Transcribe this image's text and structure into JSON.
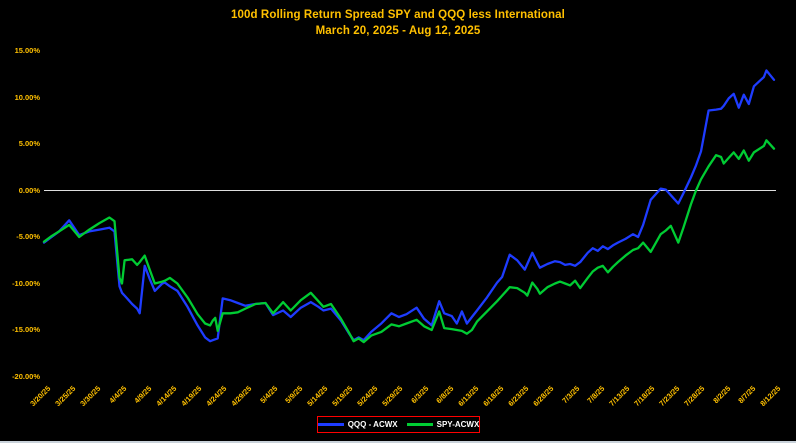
{
  "title": {
    "line1": "100d Rolling Return Spread SPY and QQQ less International",
    "line2": "March 20, 2025 - Aug 12, 2025",
    "color": "#FFC000"
  },
  "legend": {
    "border_color": "#FF0000",
    "items": [
      {
        "label": "QQQ - ACWX",
        "color": "#1E3CFF"
      },
      {
        "label": "SPY-ACWX",
        "color": "#00CC33"
      }
    ]
  },
  "chart_data": {
    "type": "line",
    "title": "100d Rolling Return Spread SPY and QQQ less International",
    "subtitle": "March 20, 2025 - Aug 12, 2025",
    "background": "#000000",
    "grid": false,
    "zero_line": {
      "shown": true,
      "color": "#DEDEDE"
    },
    "legend_position": "bottom-center",
    "x_axis": {
      "start_date": "3/20/25",
      "end_date": "8/12/25",
      "total_days": 145,
      "tick_labels": [
        "3/20/25",
        "3/25/25",
        "3/30/25",
        "4/4/25",
        "4/9/25",
        "4/14/25",
        "4/19/25",
        "4/24/25",
        "4/29/25",
        "5/4/25",
        "5/9/25",
        "5/14/25",
        "5/19/25",
        "5/24/25",
        "5/29/25",
        "6/3/25",
        "6/8/25",
        "6/13/25",
        "6/18/25",
        "6/23/25",
        "6/28/25",
        "7/3/25",
        "7/8/25",
        "7/13/25",
        "7/18/25",
        "7/23/25",
        "7/28/25",
        "8/2/25",
        "8/7/25",
        "8/12/25"
      ]
    },
    "y_axis": {
      "unit": "%",
      "min": -20,
      "max": 15,
      "tick_values": [
        15,
        10,
        5,
        0,
        -5,
        -10,
        -15,
        -20
      ],
      "tick_labels": [
        "15.00%",
        "10.00%",
        "5.00%",
        "0.00%",
        "-5.00%",
        "-10.00%",
        "-15.00%",
        "-20.00%"
      ],
      "label_color": "#FFC000"
    },
    "x_days": [
      0,
      1.5,
      3,
      5,
      7,
      9,
      11,
      13,
      14,
      15,
      15.5,
      16,
      17.5,
      18.5,
      19,
      20,
      21,
      22,
      23.5,
      24,
      25,
      26.5,
      28.5,
      30.5,
      32,
      33,
      33.5,
      34,
      34.5,
      35.5,
      37,
      38.5,
      40,
      42,
      44,
      45.5,
      47.5,
      49,
      51,
      53,
      54.5,
      55.5,
      57,
      59,
      60.5,
      61.5,
      62.5,
      63.5,
      65,
      67,
      69,
      70.5,
      72,
      74,
      75.5,
      77,
      78.5,
      79.5,
      81,
      82,
      83,
      84,
      85,
      86,
      88,
      90,
      91,
      92.5,
      94,
      95.5,
      96,
      97,
      98,
      98.5,
      100,
      101.5,
      102.5,
      103.5,
      104.5,
      105.5,
      106.5,
      108,
      109,
      110,
      111,
      112,
      113,
      114,
      115.5,
      117,
      118,
      119,
      120.5,
      122.5,
      123.5,
      124.5,
      126,
      127,
      128.5,
      129.5,
      130.5,
      132,
      133.5,
      134.5,
      135,
      136,
      137,
      138,
      139,
      140,
      141,
      143,
      143.5,
      145
    ],
    "series": [
      {
        "name": "QQQ - ACWX",
        "color": "#1E3CFF",
        "values": [
          -5.6,
          -5.0,
          -4.4,
          -3.2,
          -4.8,
          -4.4,
          -4.2,
          -4.0,
          -4.4,
          -10.3,
          -11.0,
          -11.3,
          -12.2,
          -12.7,
          -13.2,
          -8.1,
          -9.5,
          -10.8,
          -10.0,
          -9.9,
          -10.3,
          -10.8,
          -12.5,
          -14.5,
          -15.8,
          -16.2,
          -16.1,
          -16.0,
          -15.9,
          -11.6,
          -11.8,
          -12.1,
          -12.4,
          -12.2,
          -12.1,
          -13.4,
          -12.9,
          -13.6,
          -12.6,
          -12.0,
          -12.5,
          -12.9,
          -12.7,
          -14.0,
          -15.3,
          -16.1,
          -15.8,
          -16.1,
          -15.2,
          -14.3,
          -13.2,
          -13.6,
          -13.3,
          -12.6,
          -13.8,
          -14.5,
          -11.9,
          -13.2,
          -13.5,
          -14.3,
          -13.0,
          -14.3,
          -13.6,
          -12.9,
          -11.5,
          -9.9,
          -9.3,
          -6.9,
          -7.5,
          -8.5,
          -7.9,
          -6.7,
          -7.8,
          -8.3,
          -7.9,
          -7.6,
          -7.7,
          -8.0,
          -7.9,
          -8.1,
          -7.7,
          -6.7,
          -6.2,
          -6.5,
          -6.0,
          -6.3,
          -5.9,
          -5.6,
          -5.2,
          -4.7,
          -5.0,
          -3.7,
          -1.0,
          0.2,
          0.1,
          -0.5,
          -1.4,
          -0.3,
          1.4,
          2.7,
          4.2,
          8.6,
          8.7,
          8.8,
          9.1,
          9.9,
          10.4,
          8.9,
          10.3,
          9.3,
          11.2,
          12.2,
          12.9,
          11.9
        ]
      },
      {
        "name": "SPY-ACWX",
        "color": "#00CC33",
        "values": [
          -5.5,
          -4.9,
          -4.4,
          -3.7,
          -5.0,
          -4.2,
          -3.5,
          -2.9,
          -3.3,
          -9.4,
          -10.0,
          -7.5,
          -7.4,
          -8.0,
          -7.7,
          -7.0,
          -8.5,
          -10.0,
          -9.8,
          -9.7,
          -9.4,
          -10.0,
          -11.5,
          -13.3,
          -14.3,
          -14.5,
          -14.0,
          -13.7,
          -15.1,
          -13.2,
          -13.2,
          -13.1,
          -12.7,
          -12.2,
          -12.1,
          -13.2,
          -12.0,
          -12.9,
          -11.8,
          -11.0,
          -11.9,
          -12.5,
          -12.2,
          -13.8,
          -15.2,
          -16.2,
          -15.9,
          -16.3,
          -15.6,
          -15.2,
          -14.4,
          -14.6,
          -14.3,
          -13.9,
          -14.6,
          -15.0,
          -13.0,
          -14.8,
          -14.9,
          -15.0,
          -15.1,
          -15.4,
          -15.0,
          -14.1,
          -13.0,
          -11.9,
          -11.3,
          -10.4,
          -10.5,
          -11.0,
          -11.3,
          -9.9,
          -10.6,
          -11.1,
          -10.4,
          -10.0,
          -9.8,
          -10.0,
          -10.2,
          -9.7,
          -10.5,
          -9.4,
          -8.7,
          -8.3,
          -8.1,
          -8.8,
          -8.2,
          -7.7,
          -7.0,
          -6.4,
          -6.2,
          -5.6,
          -6.6,
          -4.7,
          -4.3,
          -3.8,
          -5.6,
          -4.0,
          -1.5,
          0.0,
          1.2,
          2.6,
          3.8,
          3.6,
          2.9,
          3.5,
          4.1,
          3.4,
          4.3,
          3.2,
          4.1,
          4.8,
          5.4,
          4.5
        ]
      }
    ]
  }
}
